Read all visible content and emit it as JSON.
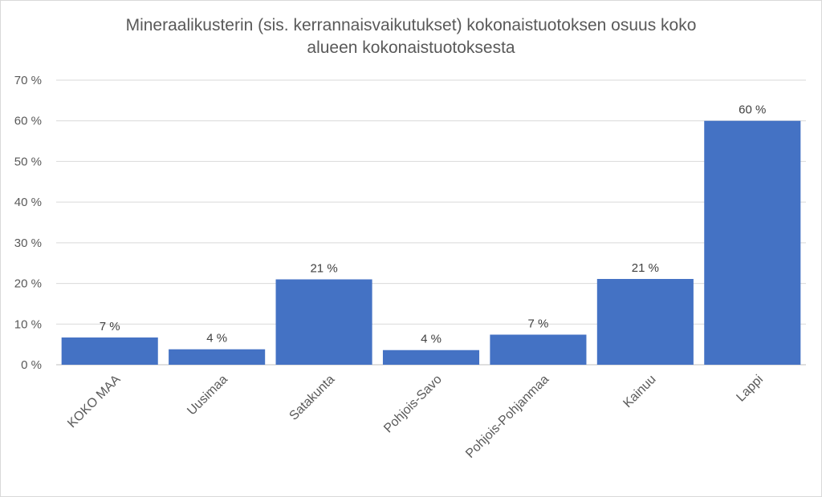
{
  "title_line1": "Mineraalikusterin (sis. kerrannaisvaikutukset) kokonaistuotoksen osuus koko",
  "title_line2": "alueen kokonaistuotoksesta",
  "chart_data": {
    "type": "bar",
    "title": "Mineraalikusterin (sis. kerrannaisvaikutukset) kokonaistuotoksen osuus koko alueen kokonaistuotoksesta",
    "categories": [
      "KOKO MAA",
      "Uusimaa",
      "Satakunta",
      "Pohjois-Savo",
      "Pohjois-Pohjanmaa",
      "Kainuu",
      "Lappi"
    ],
    "values": [
      6.7,
      3.8,
      21.0,
      3.6,
      7.4,
      21.1,
      60.0
    ],
    "data_labels": [
      "7 %",
      "4 %",
      "21 %",
      "4 %",
      "7 %",
      "21 %",
      "60 %"
    ],
    "yticks": [
      "0 %",
      "10 %",
      "20 %",
      "30 %",
      "40 %",
      "50 %",
      "60 %",
      "70 %"
    ],
    "ylim": [
      0,
      70
    ],
    "bar_color": "#4472C4",
    "grid": true,
    "legend": "none"
  }
}
